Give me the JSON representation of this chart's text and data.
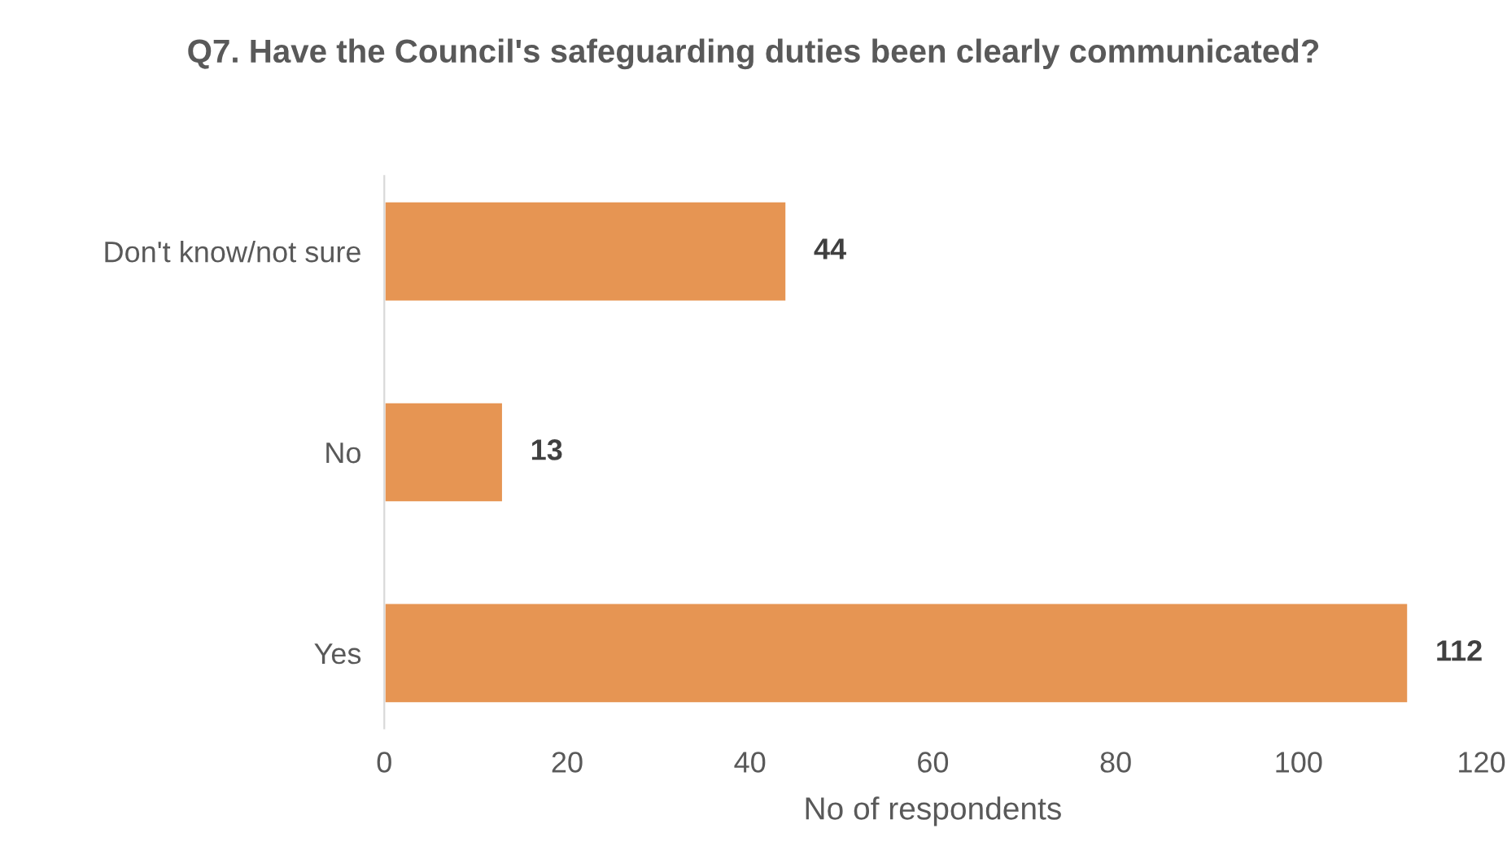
{
  "chart_data": {
    "type": "bar",
    "orientation": "horizontal",
    "title": "Q7. Have the Council's safeguarding duties been clearly communicated?",
    "xlabel": "No of respondents",
    "categories": [
      "Don't know/not sure",
      "No",
      "Yes"
    ],
    "values": [
      44,
      13,
      112
    ],
    "color": "#e69553",
    "xlim": [
      0,
      120
    ],
    "xticks": [
      0,
      20,
      40,
      60,
      80,
      100,
      120
    ],
    "data_labels": true,
    "grid": false,
    "legend": false
  }
}
